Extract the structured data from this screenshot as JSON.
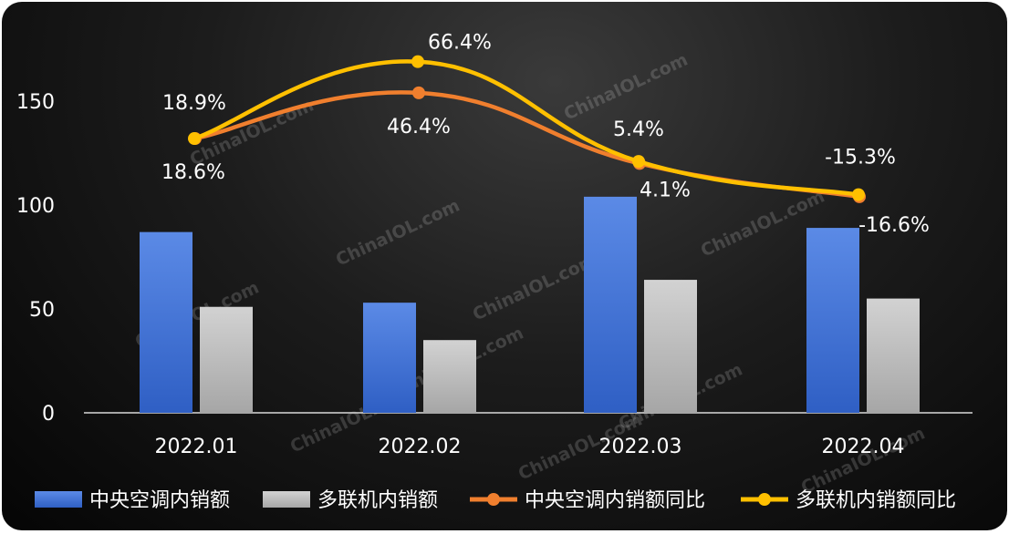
{
  "chart_data": {
    "type": "bar",
    "categories": [
      "2022.01",
      "2022.02",
      "2022.03",
      "2022.04"
    ],
    "ylim": [
      0,
      170
    ],
    "yticks": [
      0,
      50,
      100,
      150
    ],
    "grid": false,
    "legend_position": "bottom",
    "series": [
      {
        "name": "中央空调内销额",
        "type": "bar",
        "color": "#4a78d8",
        "values": [
          87,
          53,
          104,
          89
        ]
      },
      {
        "name": "多联机内销额",
        "type": "bar",
        "color": "#bdbdbd",
        "values": [
          51,
          35,
          64,
          55
        ]
      },
      {
        "name": "中央空调内销额同比",
        "type": "line",
        "color": "#f07f2e",
        "values": [
          132,
          154,
          120,
          104
        ],
        "labels": [
          "18.6%",
          "46.4%",
          "4.1%",
          "-16.6%"
        ]
      },
      {
        "name": "多联机内销额同比",
        "type": "line",
        "color": "#ffc000",
        "values": [
          132,
          169,
          121,
          105
        ],
        "labels": [
          "18.9%",
          "66.4%",
          "5.4%",
          "-15.3%"
        ]
      }
    ]
  },
  "watermark": "ChinaIOL.com"
}
